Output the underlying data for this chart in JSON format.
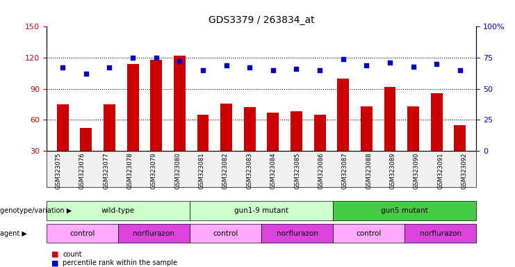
{
  "title": "GDS3379 / 263834_at",
  "samples": [
    "GSM323075",
    "GSM323076",
    "GSM323077",
    "GSM323078",
    "GSM323079",
    "GSM323080",
    "GSM323081",
    "GSM323082",
    "GSM323083",
    "GSM323084",
    "GSM323085",
    "GSM323086",
    "GSM323087",
    "GSM323088",
    "GSM323089",
    "GSM323090",
    "GSM323091",
    "GSM323092"
  ],
  "bar_values": [
    75,
    52,
    75,
    114,
    118,
    122,
    65,
    76,
    72,
    67,
    68,
    65,
    100,
    73,
    92,
    73,
    86,
    55
  ],
  "dot_pct": [
    67,
    62,
    67,
    75,
    75,
    72,
    65,
    69,
    67,
    65,
    66,
    65,
    74,
    69,
    71,
    68,
    70,
    65
  ],
  "bar_color": "#cc0000",
  "dot_color": "#0000cc",
  "ylim_left": [
    30,
    150
  ],
  "ylim_right": [
    0,
    100
  ],
  "yticks_left": [
    30,
    60,
    90,
    120,
    150
  ],
  "yticks_right": [
    0,
    25,
    50,
    75,
    100
  ],
  "ytick_labels_right": [
    "0",
    "25",
    "50",
    "75",
    "100%"
  ],
  "gridlines": [
    60,
    90,
    120
  ],
  "groups": [
    {
      "label": "wild-type",
      "start": 0,
      "end": 6,
      "color": "#ccffcc"
    },
    {
      "label": "gun1-9 mutant",
      "start": 6,
      "end": 12,
      "color": "#ccffcc"
    },
    {
      "label": "gun5 mutant",
      "start": 12,
      "end": 18,
      "color": "#44cc44"
    }
  ],
  "subgroups": [
    {
      "label": "control",
      "start": 0,
      "end": 3,
      "color": "#ffaaff"
    },
    {
      "label": "norflurazon",
      "start": 3,
      "end": 6,
      "color": "#dd44dd"
    },
    {
      "label": "control",
      "start": 6,
      "end": 9,
      "color": "#ffaaff"
    },
    {
      "label": "norflurazon",
      "start": 9,
      "end": 12,
      "color": "#dd44dd"
    },
    {
      "label": "control",
      "start": 12,
      "end": 15,
      "color": "#ffaaff"
    },
    {
      "label": "norflurazon",
      "start": 15,
      "end": 18,
      "color": "#dd44dd"
    }
  ],
  "genotype_label": "genotype/variation",
  "agent_label": "agent",
  "legend_bar": "count",
  "legend_dot": "percentile rank within the sample",
  "bar_width": 0.5,
  "bg_color": "#f0f0f0"
}
